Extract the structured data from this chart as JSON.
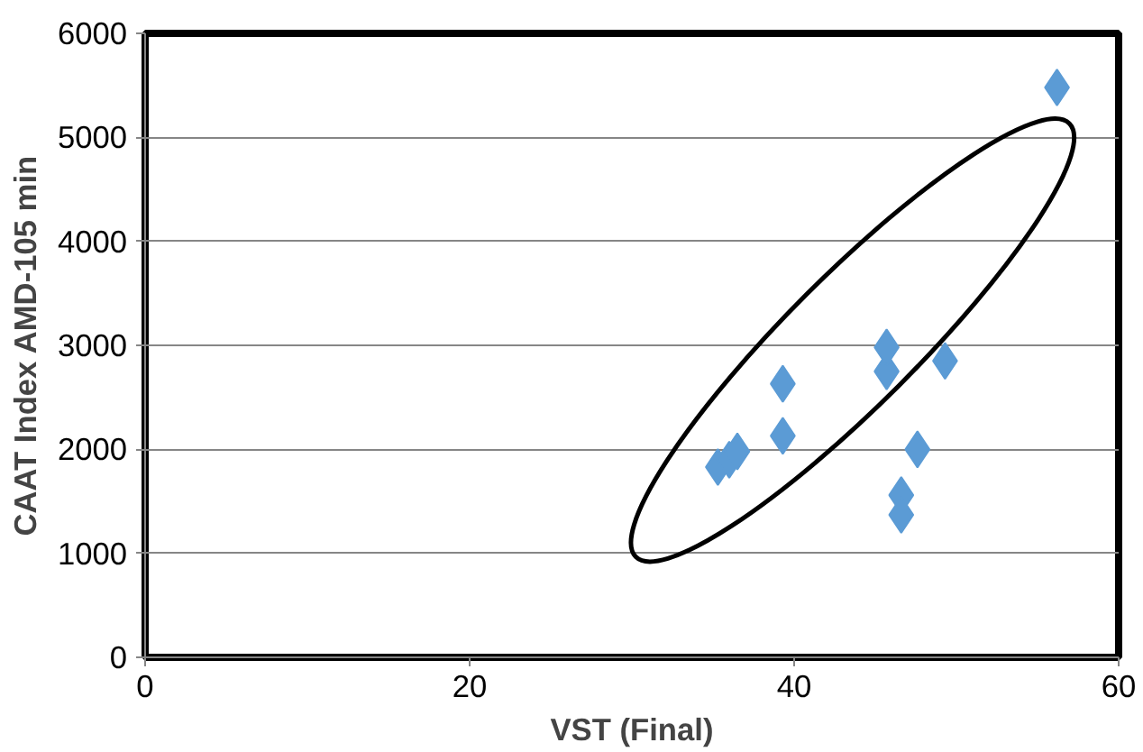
{
  "chart_data": {
    "type": "scatter",
    "xlabel": "VST (Final)",
    "ylabel": "CAAT Index AMD-105 min",
    "x": [
      35.3,
      36.0,
      36.5,
      39.3,
      39.3,
      45.7,
      45.7,
      49.3,
      47.6,
      46.6,
      46.6,
      56.2
    ],
    "values": [
      1830,
      1900,
      1980,
      2130,
      2630,
      2750,
      2980,
      2850,
      2000,
      1560,
      1370,
      5480
    ],
    "color": "#5b9bd5",
    "marker": "diamond",
    "xlim": [
      0,
      60
    ],
    "ylim": [
      0,
      6000
    ],
    "xticks": [
      0,
      20,
      40,
      60
    ],
    "yticks": [
      0,
      1000,
      2000,
      3000,
      4000,
      5000,
      6000
    ],
    "grid": "y",
    "legend": false
  }
}
